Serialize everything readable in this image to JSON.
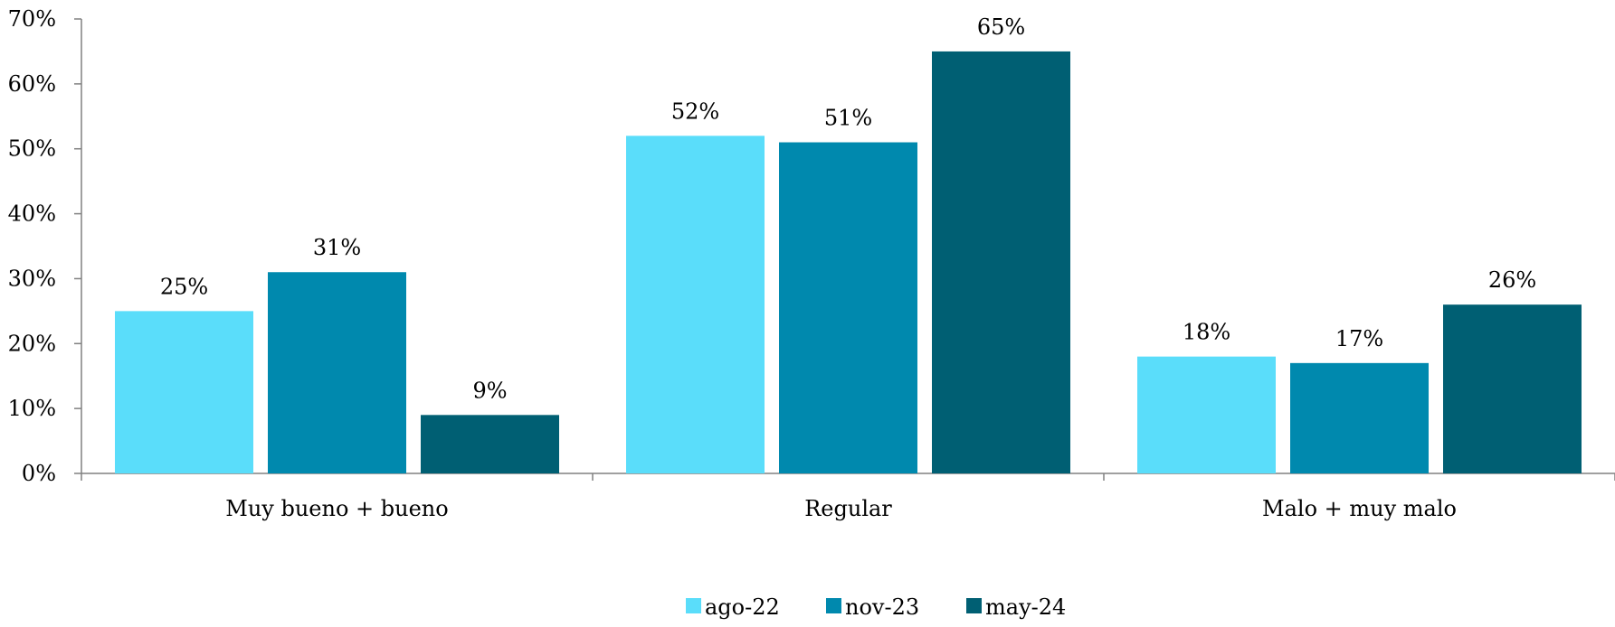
{
  "chart_data": {
    "type": "bar",
    "title": "",
    "xlabel": "",
    "ylabel": "",
    "categories": [
      "Muy bueno + bueno",
      "Regular",
      "Malo + muy malo"
    ],
    "series": [
      {
        "name": "ago-22",
        "color": "#5ADDFA",
        "values": [
          25,
          52,
          18
        ],
        "labels": [
          "25%",
          "52%",
          "18%"
        ]
      },
      {
        "name": "nov-23",
        "color": "#0089AE",
        "values": [
          31,
          51,
          17
        ],
        "labels": [
          "31%",
          "51%",
          "17%"
        ]
      },
      {
        "name": "may-24",
        "color": "#005F73",
        "values": [
          9,
          65,
          26
        ],
        "labels": [
          "9%",
          "65%",
          "26%"
        ]
      }
    ],
    "ylim": [
      0,
      70
    ],
    "yticks": [
      0,
      10,
      20,
      30,
      40,
      50,
      60,
      70
    ],
    "ytick_labels": [
      "0%",
      "10%",
      "20%",
      "30%",
      "40%",
      "50%",
      "60%",
      "70%"
    ],
    "grid": false,
    "legend_position": "bottom-center"
  }
}
